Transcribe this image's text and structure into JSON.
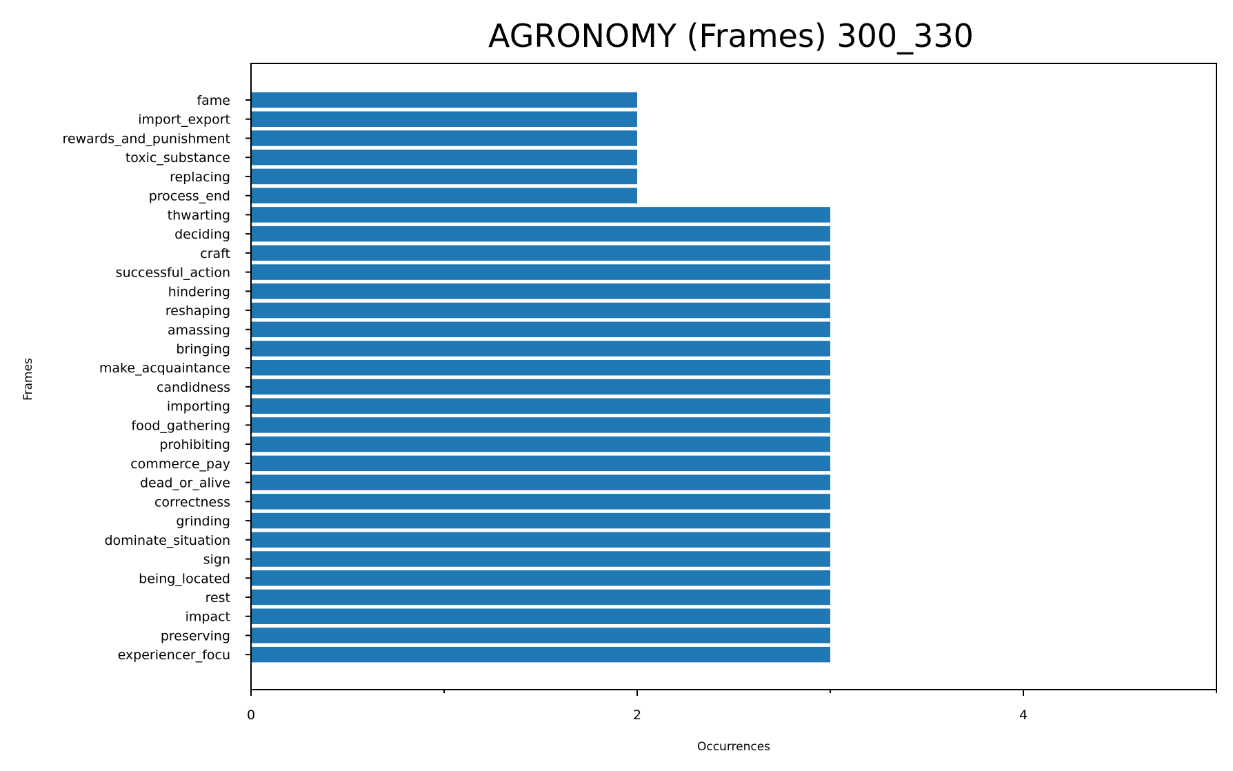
{
  "chart_data": {
    "type": "bar",
    "orientation": "horizontal",
    "title": "AGRONOMY (Frames) 300_330",
    "xlabel": "Occurrences",
    "ylabel": "Frames",
    "xlim": [
      0,
      5
    ],
    "x_ticks": [
      0,
      2,
      4
    ],
    "x_minor_ticks": [
      1,
      3,
      5
    ],
    "grid": false,
    "bar_color": "#1f77b4",
    "categories": [
      "fame",
      "import_export",
      "rewards_and_punishment",
      "toxic_substance",
      "replacing",
      "process_end",
      "thwarting",
      "deciding",
      "craft",
      "successful_action",
      "hindering",
      "reshaping",
      "amassing",
      "bringing",
      "make_acquaintance",
      "candidness",
      "importing",
      "food_gathering",
      "prohibiting",
      "commerce_pay",
      "dead_or_alive",
      "correctness",
      "grinding",
      "dominate_situation",
      "sign",
      "being_located",
      "rest",
      "impact",
      "preserving",
      "experiencer_focu"
    ],
    "values": [
      2,
      2,
      2,
      2,
      2,
      2,
      3,
      3,
      3,
      3,
      3,
      3,
      3,
      3,
      3,
      3,
      3,
      3,
      3,
      3,
      3,
      3,
      3,
      3,
      3,
      3,
      3,
      3,
      3,
      3
    ]
  }
}
